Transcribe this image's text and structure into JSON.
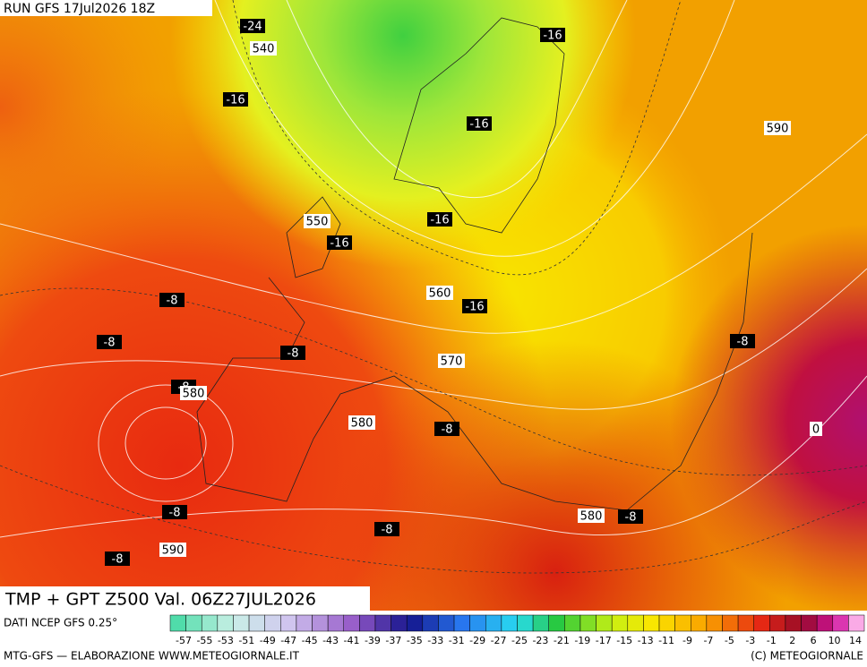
{
  "header": {
    "run": "RUN GFS 17Jul2026 18Z"
  },
  "map": {
    "temperature_labels": [
      -24,
      -16,
      -16,
      -16,
      -16,
      -16,
      -16,
      -8,
      -8,
      -8,
      -8,
      -8,
      -8,
      -8,
      -8,
      -8,
      -8
    ],
    "zero_label": 0,
    "geopotential_labels": [
      540,
      550,
      560,
      570,
      580,
      580,
      580,
      590,
      590
    ]
  },
  "footer": {
    "title": "TMP + GPT Z500 Val. 06Z27JUL2026",
    "source": "DATI NCEP GFS 0.25°",
    "credit": "MTG-GFS — ELABORAZIONE WWW.METEOGIORNALE.IT",
    "copyright": "(C) METEOGIORNALE",
    "colorbar_labels": [
      -57,
      -55,
      -53,
      -51,
      -49,
      -47,
      -45,
      -43,
      -41,
      -39,
      -37,
      -35,
      -33,
      -31,
      -29,
      -27,
      -25,
      -23,
      -21,
      -19,
      -17,
      -15,
      -13,
      -11,
      -9,
      -7,
      -5,
      -3,
      -1,
      2,
      6,
      10,
      14
    ]
  }
}
